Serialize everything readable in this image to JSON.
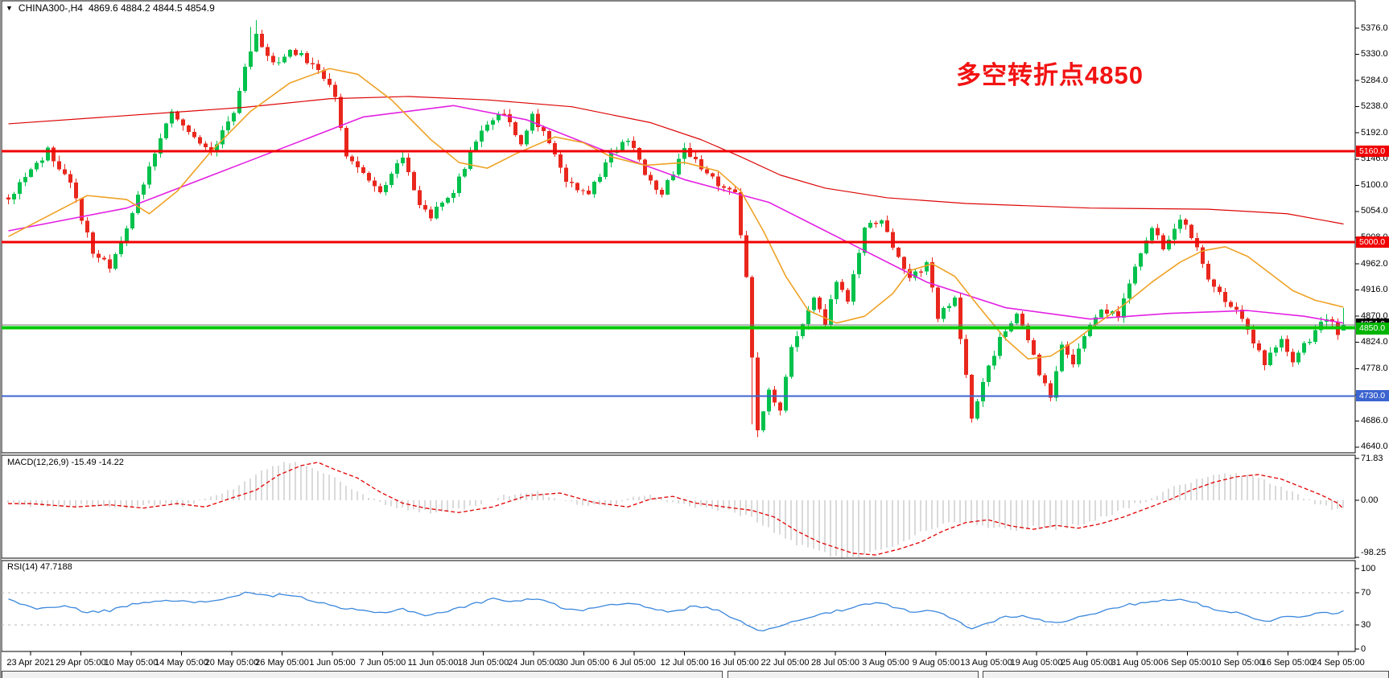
{
  "window": {
    "dropdown_icon": "▼",
    "symbol": "CHINA300-,H4",
    "ohlc_text": "4869.6 4884.2 4844.5 4854.9"
  },
  "annotation": {
    "text": "多空转折点4850",
    "color": "#f21212"
  },
  "chart_data": {
    "type": "candlestick",
    "symbol": "CHINA300-",
    "timeframe": "H4",
    "ohlc": {
      "open": 4869.6,
      "high": 4884.2,
      "low": 4844.5,
      "close": 4854.9
    },
    "colors": {
      "bull": "#00c14c",
      "bear": "#e9271d",
      "ma_slow_red": "#dd0505",
      "ma_mid_magenta": "#e321e3",
      "ma_fast_orange": "#efa226",
      "hline_red": "#f00000",
      "hline_green": "#00ca00",
      "hline_blue": "#3c64d0",
      "current_price_line": "#777777",
      "macd_hist": "#b4b4b4",
      "macd_signal": "#e00000",
      "rsi_line": "#3a87dd",
      "level_dash": "#bbbbbb"
    },
    "main": {
      "ylim": [
        4629,
        5400
      ],
      "y_ticks": [
        "5376.0",
        "5330.0",
        "5284.0",
        "5238.0",
        "5192.0",
        "5146.0",
        "5100.0",
        "5054.0",
        "5008.0",
        "4962.0",
        "4916.0",
        "4870.0",
        "4824.0",
        "4778.0",
        "4732.0",
        "4686.0",
        "4640.0"
      ],
      "hlines": [
        {
          "price": 5160,
          "label": "5160.0",
          "color": "#f00000",
          "thickness": 3,
          "badge": "#f00000"
        },
        {
          "price": 5000,
          "label": "5000.0",
          "color": "#f00000",
          "thickness": 3,
          "badge": "#f00000"
        },
        {
          "price": 4850,
          "label": "4850.0",
          "color": "#00ca00",
          "thickness": 4,
          "badge": "#00b400"
        },
        {
          "price": 4730,
          "label": "4730.0",
          "color": "#3c64d0",
          "thickness": 2,
          "badge": "#3c64d0"
        }
      ],
      "current_price": {
        "value": 4854.9,
        "label": "4854.9",
        "line_color": "#777777",
        "badge": "#000000"
      },
      "bar_count": 238,
      "price_waypoints": [
        [
          0,
          5075
        ],
        [
          7,
          5160
        ],
        [
          11,
          5100
        ],
        [
          15,
          4985
        ],
        [
          18,
          4955
        ],
        [
          20,
          5000
        ],
        [
          29,
          5235
        ],
        [
          33,
          5180
        ],
        [
          36,
          5160
        ],
        [
          40,
          5230
        ],
        [
          42,
          5310
        ],
        [
          44,
          5365
        ],
        [
          47,
          5310
        ],
        [
          50,
          5340
        ],
        [
          53,
          5320
        ],
        [
          55,
          5300
        ],
        [
          58,
          5260
        ],
        [
          60,
          5150
        ],
        [
          63,
          5120
        ],
        [
          66,
          5090
        ],
        [
          70,
          5150
        ],
        [
          73,
          5070
        ],
        [
          75,
          5045
        ],
        [
          79,
          5090
        ],
        [
          83,
          5180
        ],
        [
          85,
          5210
        ],
        [
          88,
          5230
        ],
        [
          91,
          5170
        ],
        [
          93,
          5220
        ],
        [
          95,
          5190
        ],
        [
          99,
          5110
        ],
        [
          103,
          5085
        ],
        [
          107,
          5155
        ],
        [
          110,
          5180
        ],
        [
          113,
          5120
        ],
        [
          116,
          5085
        ],
        [
          120,
          5160
        ],
        [
          123,
          5130
        ],
        [
          126,
          5100
        ],
        [
          129,
          5085
        ],
        [
          131,
          4940
        ],
        [
          133,
          4665
        ],
        [
          135,
          4740
        ],
        [
          137,
          4700
        ],
        [
          139,
          4820
        ],
        [
          141,
          4850
        ],
        [
          143,
          4900
        ],
        [
          145,
          4860
        ],
        [
          147,
          4930
        ],
        [
          149,
          4900
        ],
        [
          152,
          5030
        ],
        [
          155,
          5040
        ],
        [
          157,
          4990
        ],
        [
          160,
          4940
        ],
        [
          163,
          4960
        ],
        [
          165,
          4870
        ],
        [
          168,
          4900
        ],
        [
          171,
          4695
        ],
        [
          174,
          4780
        ],
        [
          176,
          4830
        ],
        [
          179,
          4880
        ],
        [
          181,
          4830
        ],
        [
          183,
          4770
        ],
        [
          185,
          4730
        ],
        [
          187,
          4820
        ],
        [
          189,
          4780
        ],
        [
          191,
          4840
        ],
        [
          194,
          4880
        ],
        [
          197,
          4870
        ],
        [
          200,
          4960
        ],
        [
          203,
          5030
        ],
        [
          205,
          4990
        ],
        [
          208,
          5045
        ],
        [
          211,
          4990
        ],
        [
          213,
          4935
        ],
        [
          216,
          4900
        ],
        [
          219,
          4870
        ],
        [
          221,
          4820
        ],
        [
          223,
          4790
        ],
        [
          226,
          4830
        ],
        [
          228,
          4795
        ],
        [
          231,
          4830
        ],
        [
          234,
          4870
        ],
        [
          236,
          4840
        ],
        [
          237,
          4855
        ]
      ],
      "spikes": [
        {
          "i": 43,
          "high": 5378
        },
        {
          "i": 44,
          "high": 5390
        },
        {
          "i": 132,
          "low": 4680
        },
        {
          "i": 133,
          "low": 4658
        },
        {
          "i": 171,
          "low": 4683
        },
        {
          "i": 185,
          "low": 4726
        }
      ],
      "ma_lines": [
        {
          "name": "ma-slow-red",
          "color": "#dd0505",
          "width": 1.2,
          "points": [
            [
              0,
              5208
            ],
            [
              42,
              5237
            ],
            [
              57,
              5252
            ],
            [
              71,
              5256
            ],
            [
              85,
              5250
            ],
            [
              100,
              5238
            ],
            [
              114,
              5210
            ],
            [
              123,
              5180
            ],
            [
              130,
              5150
            ],
            [
              137,
              5118
            ],
            [
              145,
              5095
            ],
            [
              156,
              5078
            ],
            [
              170,
              5068
            ],
            [
              192,
              5060
            ],
            [
              213,
              5058
            ],
            [
              227,
              5050
            ],
            [
              237,
              5032
            ]
          ]
        },
        {
          "name": "ma-mid-magenta",
          "color": "#e321e3",
          "width": 1.6,
          "points": [
            [
              0,
              5020
            ],
            [
              21,
              5060
            ],
            [
              42,
              5140
            ],
            [
              63,
              5220
            ],
            [
              79,
              5240
            ],
            [
              92,
              5215
            ],
            [
              106,
              5160
            ],
            [
              120,
              5110
            ],
            [
              135,
              5070
            ],
            [
              149,
              5000
            ],
            [
              163,
              4930
            ],
            [
              177,
              4885
            ],
            [
              192,
              4865
            ],
            [
              206,
              4875
            ],
            [
              220,
              4880
            ],
            [
              230,
              4870
            ],
            [
              237,
              4858
            ]
          ]
        },
        {
          "name": "ma-fast-orange",
          "color": "#efa226",
          "width": 1.6,
          "points": [
            [
              0,
              5010
            ],
            [
              14,
              5082
            ],
            [
              21,
              5075
            ],
            [
              25,
              5050
            ],
            [
              30,
              5090
            ],
            [
              36,
              5160
            ],
            [
              43,
              5230
            ],
            [
              50,
              5280
            ],
            [
              57,
              5305
            ],
            [
              62,
              5295
            ],
            [
              68,
              5250
            ],
            [
              75,
              5180
            ],
            [
              80,
              5140
            ],
            [
              85,
              5130
            ],
            [
              90,
              5155
            ],
            [
              97,
              5185
            ],
            [
              102,
              5175
            ],
            [
              107,
              5150
            ],
            [
              113,
              5135
            ],
            [
              120,
              5140
            ],
            [
              126,
              5125
            ],
            [
              130,
              5090
            ],
            [
              134,
              5020
            ],
            [
              138,
              4940
            ],
            [
              142,
              4880
            ],
            [
              147,
              4858
            ],
            [
              152,
              4870
            ],
            [
              157,
              4910
            ],
            [
              160,
              4950
            ],
            [
              164,
              4962
            ],
            [
              168,
              4940
            ],
            [
              172,
              4890
            ],
            [
              177,
              4830
            ],
            [
              181,
              4795
            ],
            [
              185,
              4800
            ],
            [
              189,
              4825
            ],
            [
              193,
              4855
            ],
            [
              198,
              4890
            ],
            [
              203,
              4930
            ],
            [
              208,
              4965
            ],
            [
              212,
              4985
            ],
            [
              216,
              4992
            ],
            [
              220,
              4975
            ],
            [
              224,
              4945
            ],
            [
              228,
              4915
            ],
            [
              232,
              4898
            ],
            [
              237,
              4886
            ]
          ]
        }
      ]
    },
    "macd": {
      "label_full": "MACD(12,26,9) -15.49 -14.22",
      "name": "MACD",
      "params": "12,26,9",
      "macd_value": -15.49,
      "signal_value": -14.22,
      "y_ticks": [
        "71.83",
        "0.00",
        "-98.25"
      ],
      "tick_values": [
        71.83,
        0,
        -98.25
      ],
      "waypoints": [
        [
          0,
          -6
        ],
        [
          8,
          -12
        ],
        [
          14,
          -8
        ],
        [
          20,
          -14
        ],
        [
          26,
          -6
        ],
        [
          31,
          -12
        ],
        [
          36,
          5
        ],
        [
          40,
          18
        ],
        [
          44,
          45
        ],
        [
          48,
          62
        ],
        [
          51,
          68
        ],
        [
          54,
          55
        ],
        [
          58,
          40
        ],
        [
          62,
          15
        ],
        [
          66,
          -5
        ],
        [
          70,
          -14
        ],
        [
          76,
          -22
        ],
        [
          82,
          -12
        ],
        [
          88,
          8
        ],
        [
          94,
          13
        ],
        [
          100,
          -4
        ],
        [
          106,
          -12
        ],
        [
          110,
          2
        ],
        [
          114,
          7
        ],
        [
          118,
          -5
        ],
        [
          124,
          -13
        ],
        [
          128,
          -18
        ],
        [
          132,
          -30
        ],
        [
          136,
          -55
        ],
        [
          140,
          -75
        ],
        [
          146,
          -95
        ],
        [
          150,
          -98
        ],
        [
          154,
          -88
        ],
        [
          158,
          -75
        ],
        [
          162,
          -55
        ],
        [
          166,
          -40
        ],
        [
          170,
          -35
        ],
        [
          174,
          -46
        ],
        [
          178,
          -52
        ],
        [
          182,
          -45
        ],
        [
          186,
          -50
        ],
        [
          190,
          -42
        ],
        [
          194,
          -30
        ],
        [
          198,
          -15
        ],
        [
          202,
          0
        ],
        [
          206,
          18
        ],
        [
          210,
          32
        ],
        [
          214,
          42
        ],
        [
          218,
          46
        ],
        [
          222,
          38
        ],
        [
          226,
          22
        ],
        [
          229,
          10
        ],
        [
          232,
          -5
        ],
        [
          235,
          -14
        ],
        [
          237,
          -15.5
        ]
      ]
    },
    "rsi": {
      "label_full": "RSI(14) 47.7188",
      "name": "RSI",
      "period": 14,
      "value": 47.7188,
      "y_ticks": [
        "100",
        "70",
        "30",
        "0"
      ],
      "tick_values": [
        100,
        70,
        30,
        0
      ],
      "levels": [
        70,
        30
      ],
      "waypoints": [
        [
          0,
          62
        ],
        [
          5,
          50
        ],
        [
          10,
          53
        ],
        [
          14,
          46
        ],
        [
          18,
          48
        ],
        [
          23,
          57
        ],
        [
          28,
          62
        ],
        [
          33,
          57
        ],
        [
          38,
          62
        ],
        [
          42,
          70
        ],
        [
          46,
          66
        ],
        [
          50,
          68
        ],
        [
          54,
          60
        ],
        [
          58,
          52
        ],
        [
          62,
          48
        ],
        [
          66,
          45
        ],
        [
          70,
          50
        ],
        [
          74,
          42
        ],
        [
          78,
          47
        ],
        [
          82,
          55
        ],
        [
          86,
          62
        ],
        [
          90,
          60
        ],
        [
          94,
          63
        ],
        [
          98,
          52
        ],
        [
          102,
          48
        ],
        [
          106,
          55
        ],
        [
          110,
          58
        ],
        [
          114,
          50
        ],
        [
          118,
          46
        ],
        [
          122,
          54
        ],
        [
          126,
          48
        ],
        [
          130,
          35
        ],
        [
          133,
          22
        ],
        [
          136,
          28
        ],
        [
          139,
          33
        ],
        [
          142,
          40
        ],
        [
          145,
          45
        ],
        [
          148,
          48
        ],
        [
          152,
          55
        ],
        [
          155,
          57
        ],
        [
          158,
          50
        ],
        [
          161,
          45
        ],
        [
          164,
          48
        ],
        [
          167,
          40
        ],
        [
          171,
          25
        ],
        [
          174,
          33
        ],
        [
          177,
          40
        ],
        [
          180,
          42
        ],
        [
          183,
          36
        ],
        [
          186,
          32
        ],
        [
          189,
          38
        ],
        [
          192,
          44
        ],
        [
          195,
          48
        ],
        [
          199,
          55
        ],
        [
          203,
          60
        ],
        [
          207,
          62
        ],
        [
          211,
          57
        ],
        [
          214,
          50
        ],
        [
          218,
          45
        ],
        [
          221,
          38
        ],
        [
          224,
          35
        ],
        [
          227,
          42
        ],
        [
          230,
          40
        ],
        [
          233,
          45
        ],
        [
          236,
          44
        ],
        [
          237,
          47.7
        ]
      ]
    },
    "x_axis": {
      "labels": [
        "23 Apr 2021",
        "29 Apr 05:00",
        "10 May 05:00",
        "14 May 05:00",
        "20 May 05:00",
        "26 May 05:00",
        "1 Jun 05:00",
        "7 Jun 05:00",
        "11 Jun 05:00",
        "18 Jun 05:00",
        "24 Jun 05:00",
        "30 Jun 05:00",
        "6 Jul 05:00",
        "12 Jul 05:00",
        "16 Jul 05:00",
        "22 Jul 05:00",
        "28 Jul 05:00",
        "3 Aug 05:00",
        "9 Aug 05:00",
        "13 Aug 05:00",
        "19 Aug 05:00",
        "25 Aug 05:00",
        "31 Aug 05:00",
        "6 Sep 05:00",
        "10 Sep 05:00",
        "16 Sep 05:00",
        "24 Sep 05:00"
      ]
    }
  }
}
